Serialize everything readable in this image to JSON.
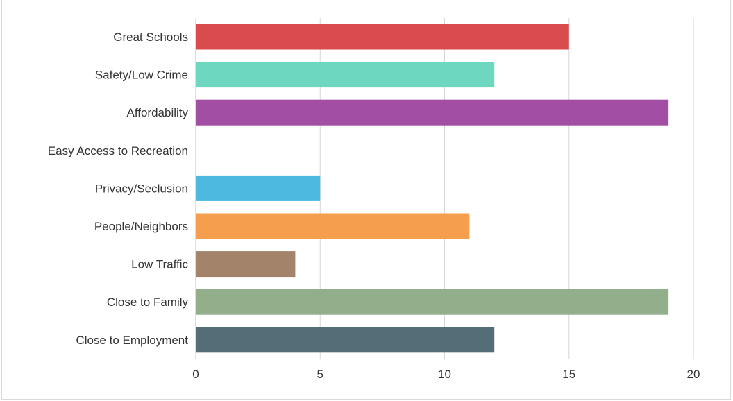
{
  "chart_data": {
    "type": "bar",
    "orientation": "horizontal",
    "title": "",
    "xlabel": "",
    "ylabel": "",
    "categories": [
      "Great Schools",
      "Safety/Low Crime",
      "Affordability",
      "Easy Access to Recreation",
      "Privacy/Seclusion",
      "People/Neighbors",
      "Low Traffic",
      "Close to Family",
      "Close to Employment"
    ],
    "values": [
      15,
      12,
      19,
      0,
      5,
      11,
      4,
      19,
      12
    ],
    "colors": [
      "#d94b4d",
      "#6dd8bf",
      "#a24ea4",
      "#cccccc",
      "#4db8e0",
      "#f59e4d",
      "#a3836a",
      "#92ae8a",
      "#546e77"
    ],
    "xlim": [
      0,
      20
    ],
    "xticks": [
      0,
      5,
      10,
      15,
      20
    ],
    "grid": true,
    "gridline_color": "#d6d6d6",
    "axis_color": "#bfbfbf"
  }
}
